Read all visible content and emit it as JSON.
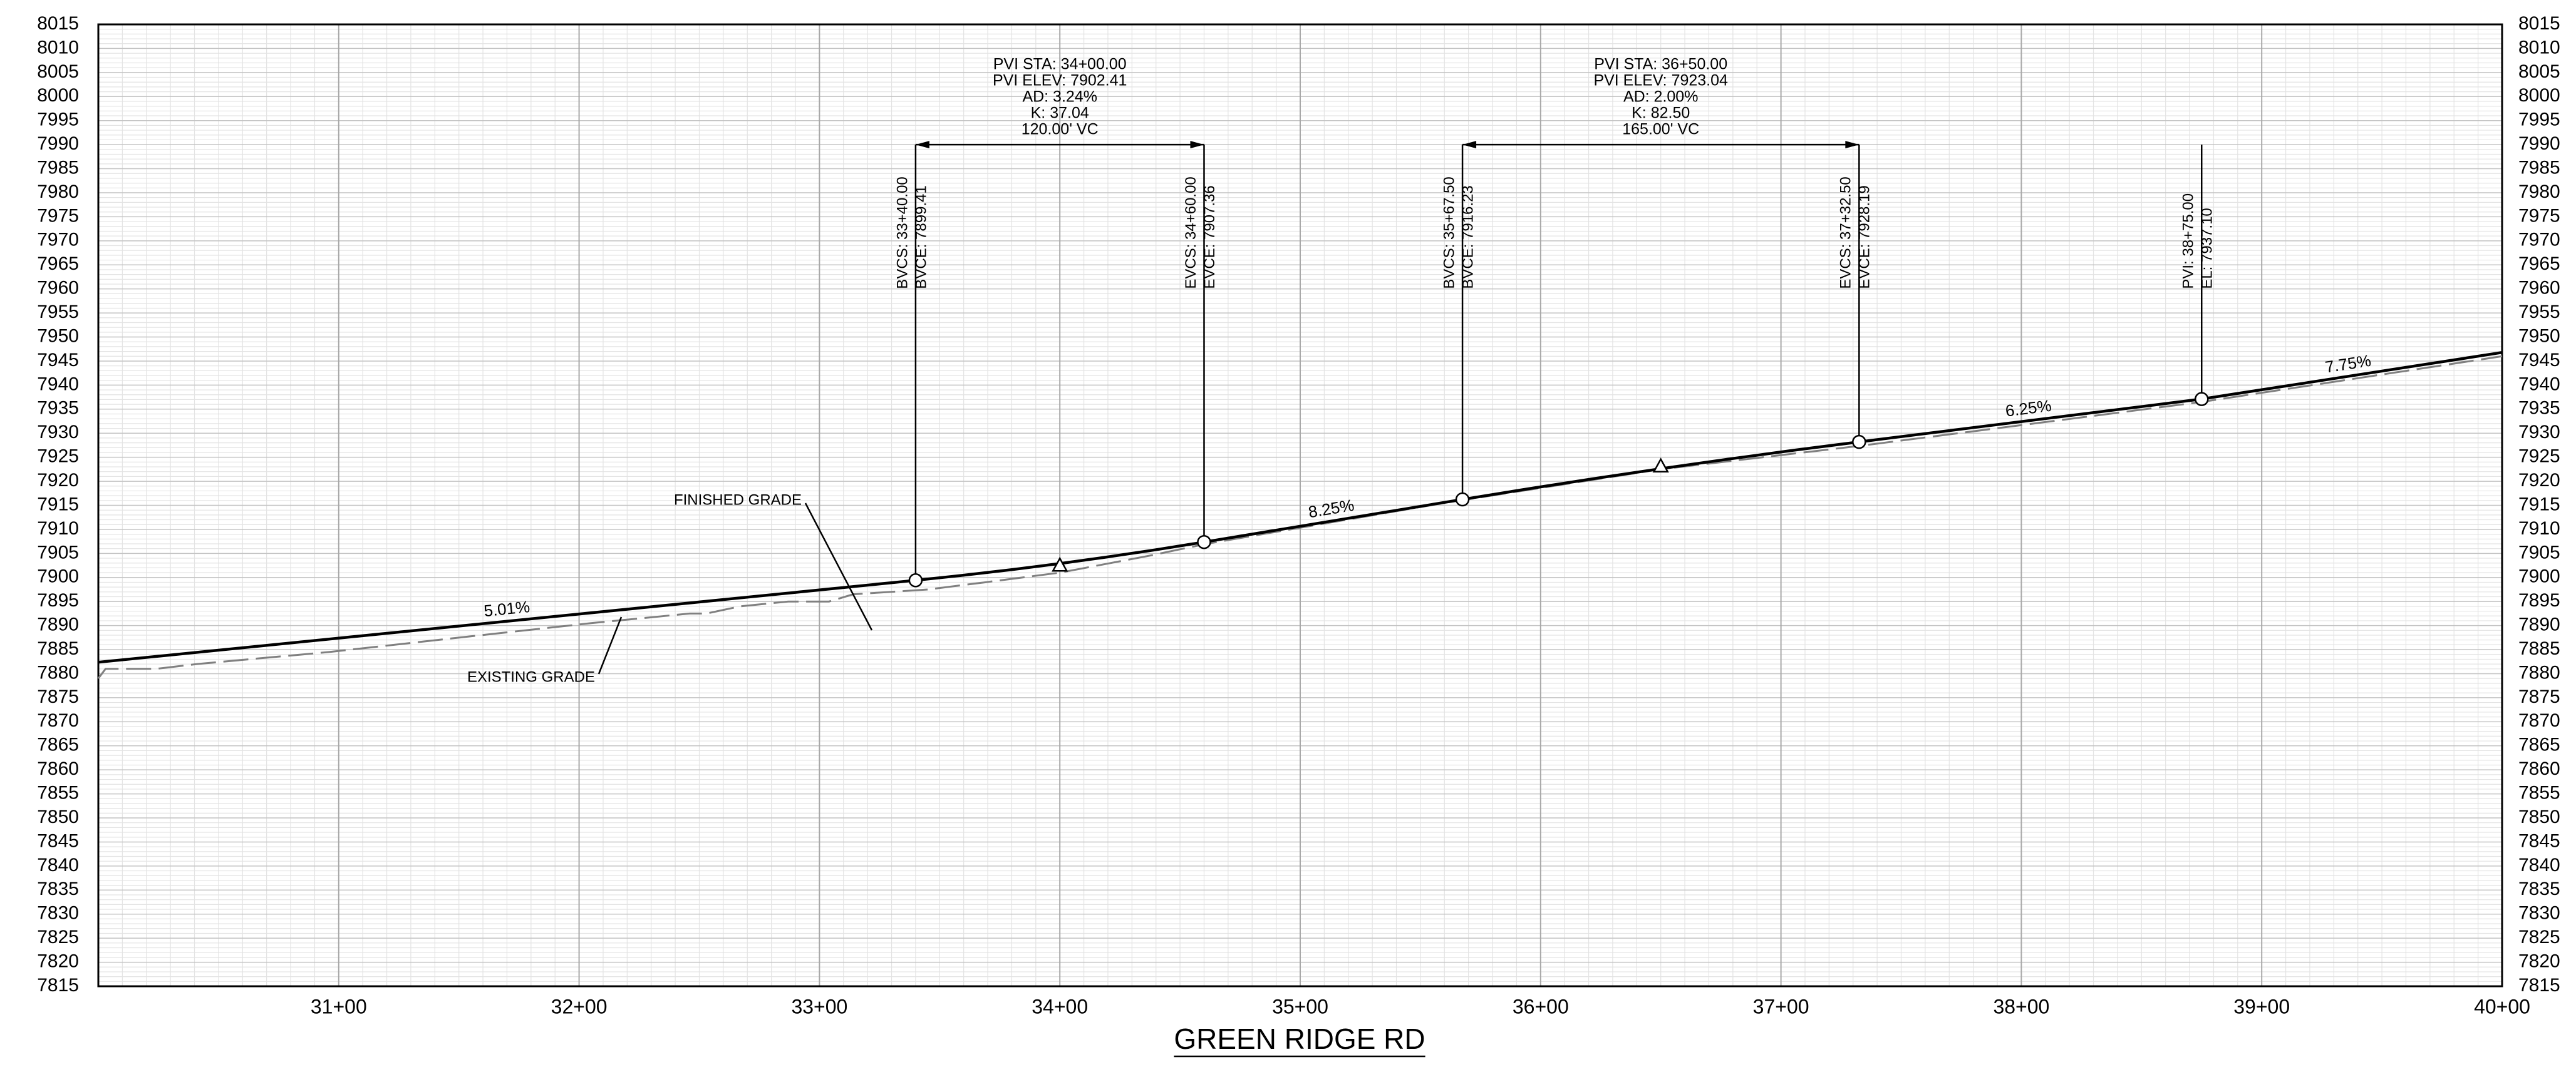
{
  "chart_data": {
    "type": "line",
    "title": "GREEN RIDGE RD",
    "xlim": [
      3000,
      4000
    ],
    "xticks": [
      {
        "value": 3100,
        "label": "31+00"
      },
      {
        "value": 3200,
        "label": "32+00"
      },
      {
        "value": 3300,
        "label": "33+00"
      },
      {
        "value": 3400,
        "label": "34+00"
      },
      {
        "value": 3500,
        "label": "35+00"
      },
      {
        "value": 3600,
        "label": "36+00"
      },
      {
        "value": 3700,
        "label": "37+00"
      },
      {
        "value": 3800,
        "label": "38+00"
      },
      {
        "value": 3900,
        "label": "39+00"
      },
      {
        "value": 4000,
        "label": "40+00"
      }
    ],
    "ylim": [
      7815,
      8015
    ],
    "yticks": [
      7815,
      7820,
      7825,
      7830,
      7835,
      7840,
      7845,
      7850,
      7855,
      7860,
      7865,
      7870,
      7875,
      7880,
      7885,
      7890,
      7895,
      7900,
      7905,
      7910,
      7915,
      7920,
      7925,
      7930,
      7935,
      7940,
      7945,
      7950,
      7955,
      7960,
      7965,
      7970,
      7975,
      7980,
      7985,
      7990,
      7995,
      8000,
      8005,
      8010,
      8015
    ],
    "grid": true,
    "minor_grid": {
      "x_step": 10,
      "y_step": 1
    },
    "series": [
      {
        "name": "FINISHED GRADE",
        "color": "#000000",
        "dashed": false,
        "x": [
          3000,
          3340,
          3360,
          3380,
          3400,
          3420,
          3440,
          3460,
          3567.5,
          3595,
          3622.5,
          3650,
          3677.5,
          3705,
          3732.5,
          3875,
          4000
        ],
        "values": [
          7882.38,
          7899.41,
          7900.47,
          7901.63,
          7902.9,
          7904.28,
          7905.77,
          7907.36,
          7916.23,
          7918.45,
          7920.58,
          7922.62,
          7924.57,
          7926.43,
          7928.19,
          7937.1,
          7946.79
        ]
      },
      {
        "name": "EXISTING GRADE",
        "color": "#808080",
        "dashed": true,
        "x": [
          3000,
          3003,
          3024,
          3041,
          3096,
          3150,
          3205,
          3246,
          3253,
          3267,
          3287,
          3304,
          3314,
          3345,
          3369,
          3400,
          3437,
          3461,
          3560,
          3650,
          3735,
          3875,
          4000
        ],
        "values": [
          7879,
          7881,
          7881,
          7882,
          7884.5,
          7887.5,
          7890.5,
          7892.5,
          7892.5,
          7894,
          7895,
          7895,
          7896.5,
          7897.5,
          7899,
          7901,
          7904.5,
          7907,
          7915.5,
          7922.5,
          7927.5,
          7936.5,
          7946
        ]
      }
    ],
    "vertical_curves": [
      {
        "bvc": {
          "x": 3340,
          "y": 7899.41,
          "labels": [
            "BVCS: 33+40.00",
            "BVCE: 7899.41"
          ]
        },
        "pvi": {
          "x": 3400,
          "y": 7902.41
        },
        "evc": {
          "x": 3460,
          "y": 7907.36,
          "labels": [
            "EVCS: 34+60.00",
            "EVCE: 7907.36"
          ]
        },
        "lines": [
          "PVI STA: 34+00.00",
          "PVI ELEV: 7902.41",
          "AD: 3.24%",
          "K: 37.04",
          "120.00' VC"
        ]
      },
      {
        "bvc": {
          "x": 3567.5,
          "y": 7916.23,
          "labels": [
            "BVCS: 35+67.50",
            "BVCE: 7916.23"
          ]
        },
        "pvi": {
          "x": 3650,
          "y": 7923.04
        },
        "evc": {
          "x": 3732.5,
          "y": 7928.19,
          "labels": [
            "EVCS: 37+32.50",
            "EVCE: 7928.19"
          ]
        },
        "lines": [
          "PVI STA: 36+50.00",
          "PVI ELEV: 7923.04",
          "AD: 2.00%",
          "K: 82.50",
          "165.00' VC"
        ]
      }
    ],
    "pvis": [
      {
        "x": 3875,
        "y": 7937.1,
        "labels": [
          "PVI: 38+75.00",
          "EL: 7937.10"
        ]
      }
    ],
    "grade_labels": [
      {
        "text": "5.01%",
        "x": 3170
      },
      {
        "text": "8.25%",
        "x": 3513
      },
      {
        "text": "6.25%",
        "x": 3803
      },
      {
        "text": "7.75%",
        "x": 3936
      }
    ]
  }
}
